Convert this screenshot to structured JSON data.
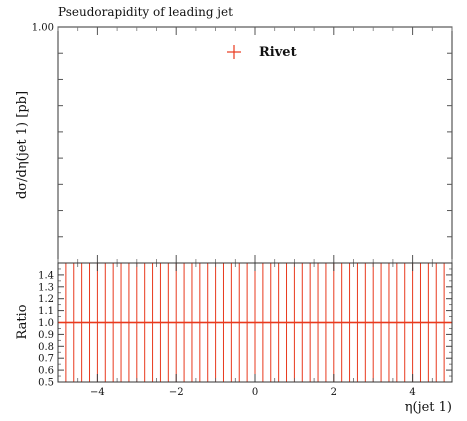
{
  "chart_data": [
    {
      "type": "scatter",
      "title": "Pseudorapidity of leading jet",
      "ylabel": "dσ/dη(jet 1) [pb]",
      "yticks": [
        {
          "value": 1.0,
          "label": "1.00"
        }
      ],
      "ylim": [
        0.0,
        1.0
      ],
      "xlim": [
        -5,
        5
      ],
      "legend": {
        "position": "top-center",
        "entries": [
          {
            "name": "Rivet",
            "color": "#e8391d",
            "marker": "plus"
          }
        ]
      },
      "series": [
        {
          "name": "Rivet",
          "x": [],
          "y": []
        }
      ]
    },
    {
      "type": "line",
      "ylabel": "Ratio",
      "xlabel": "η(jet 1)",
      "xlim": [
        -5,
        5
      ],
      "ylim": [
        0.5,
        1.5
      ],
      "yticks": [
        {
          "value": 0.5,
          "label": "0.5"
        },
        {
          "value": 0.6,
          "label": "0.6"
        },
        {
          "value": 0.7,
          "label": "0.7"
        },
        {
          "value": 0.8,
          "label": "0.8"
        },
        {
          "value": 0.9,
          "label": "0.9"
        },
        {
          "value": 1.0,
          "label": "1.0"
        },
        {
          "value": 1.1,
          "label": "1.1"
        },
        {
          "value": 1.2,
          "label": "1.2"
        },
        {
          "value": 1.3,
          "label": "1.3"
        },
        {
          "value": 1.4,
          "label": "1.4"
        }
      ],
      "xticks": [
        {
          "value": -4,
          "label": "−4"
        },
        {
          "value": -2,
          "label": "−2"
        },
        {
          "value": 0,
          "label": "0"
        },
        {
          "value": 2,
          "label": "2"
        },
        {
          "value": 4,
          "label": "4"
        }
      ],
      "bin_width": 0.2,
      "reference_value": 1.0,
      "series": [
        {
          "name": "Rivet",
          "color": "#e8391d"
        }
      ]
    }
  ]
}
